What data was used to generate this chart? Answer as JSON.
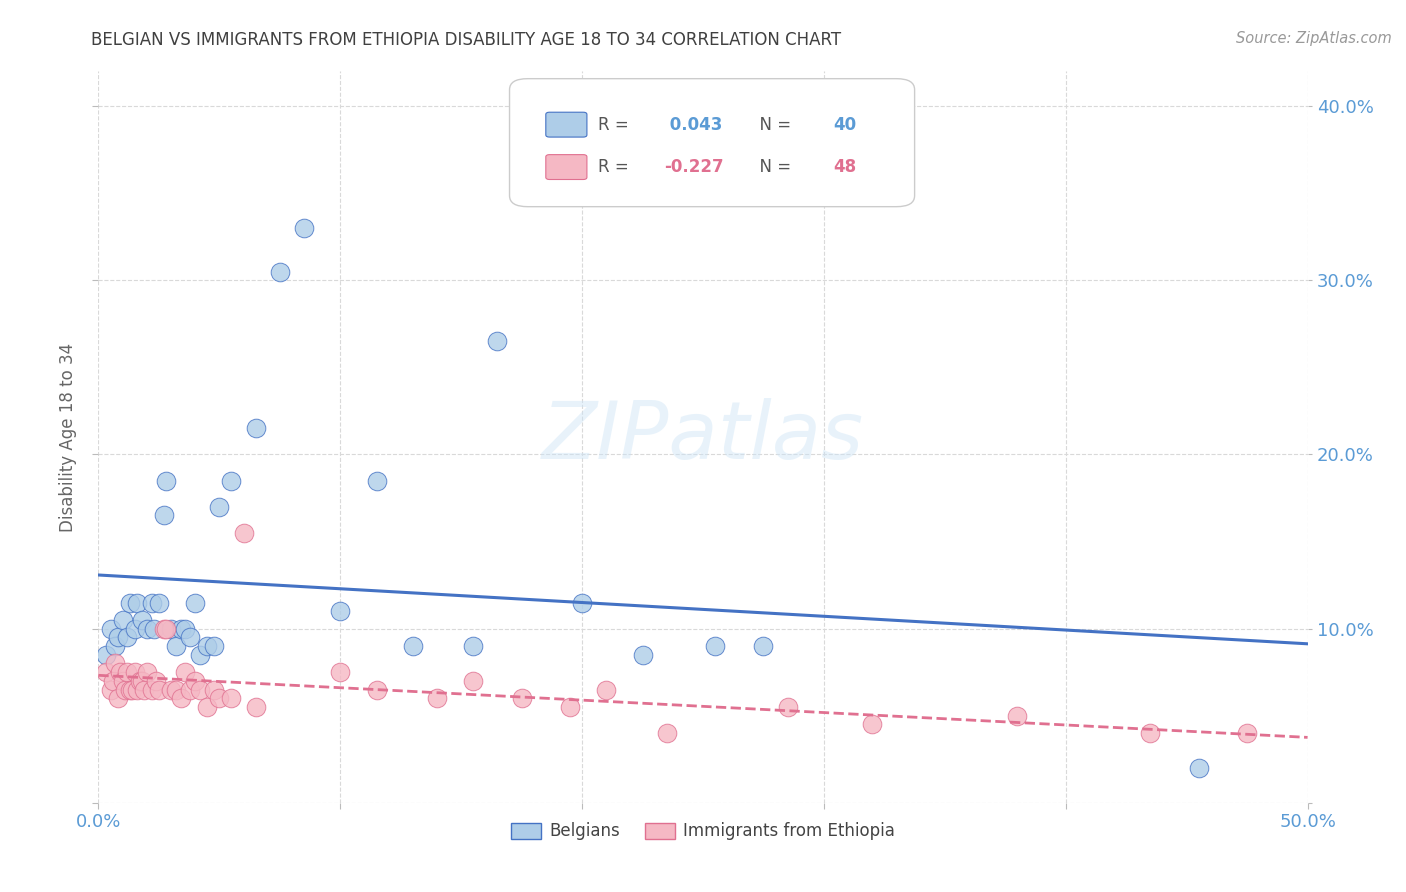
{
  "title": "BELGIAN VS IMMIGRANTS FROM ETHIOPIA DISABILITY AGE 18 TO 34 CORRELATION CHART",
  "source": "Source: ZipAtlas.com",
  "ylabel": "Disability Age 18 to 34",
  "xlim": [
    0.0,
    0.5
  ],
  "ylim": [
    0.0,
    0.42
  ],
  "belgian_r": 0.043,
  "belgian_n": 40,
  "ethiopia_r": -0.227,
  "ethiopia_n": 48,
  "belgian_color": "#aecde8",
  "ethiopia_color": "#f5b8c4",
  "belgian_line_color": "#4472c4",
  "ethiopia_line_color": "#e07090",
  "axis_color": "#5b9bd5",
  "grid_color": "#d9d9d9",
  "title_color": "#404040",
  "belgian_x": [
    0.003,
    0.005,
    0.007,
    0.008,
    0.01,
    0.012,
    0.013,
    0.015,
    0.016,
    0.018,
    0.02,
    0.022,
    0.023,
    0.025,
    0.027,
    0.028,
    0.03,
    0.032,
    0.034,
    0.036,
    0.038,
    0.04,
    0.042,
    0.045,
    0.048,
    0.05,
    0.055,
    0.065,
    0.075,
    0.085,
    0.1,
    0.115,
    0.13,
    0.155,
    0.165,
    0.2,
    0.225,
    0.255,
    0.275,
    0.455
  ],
  "belgian_y": [
    0.085,
    0.1,
    0.09,
    0.095,
    0.105,
    0.095,
    0.115,
    0.1,
    0.115,
    0.105,
    0.1,
    0.115,
    0.1,
    0.115,
    0.165,
    0.185,
    0.1,
    0.09,
    0.1,
    0.1,
    0.095,
    0.115,
    0.085,
    0.09,
    0.09,
    0.17,
    0.185,
    0.215,
    0.305,
    0.33,
    0.11,
    0.185,
    0.09,
    0.09,
    0.265,
    0.115,
    0.085,
    0.09,
    0.09,
    0.02
  ],
  "ethiopia_x": [
    0.003,
    0.005,
    0.006,
    0.007,
    0.008,
    0.009,
    0.01,
    0.011,
    0.012,
    0.013,
    0.014,
    0.015,
    0.016,
    0.017,
    0.018,
    0.019,
    0.02,
    0.022,
    0.024,
    0.025,
    0.027,
    0.028,
    0.03,
    0.032,
    0.034,
    0.036,
    0.038,
    0.04,
    0.042,
    0.045,
    0.048,
    0.05,
    0.055,
    0.06,
    0.065,
    0.1,
    0.115,
    0.14,
    0.155,
    0.175,
    0.195,
    0.21,
    0.235,
    0.285,
    0.32,
    0.38,
    0.435,
    0.475
  ],
  "ethiopia_y": [
    0.075,
    0.065,
    0.07,
    0.08,
    0.06,
    0.075,
    0.07,
    0.065,
    0.075,
    0.065,
    0.065,
    0.075,
    0.065,
    0.07,
    0.07,
    0.065,
    0.075,
    0.065,
    0.07,
    0.065,
    0.1,
    0.1,
    0.065,
    0.065,
    0.06,
    0.075,
    0.065,
    0.07,
    0.065,
    0.055,
    0.065,
    0.06,
    0.06,
    0.155,
    0.055,
    0.075,
    0.065,
    0.06,
    0.07,
    0.06,
    0.055,
    0.065,
    0.04,
    0.055,
    0.045,
    0.05,
    0.04,
    0.04
  ]
}
